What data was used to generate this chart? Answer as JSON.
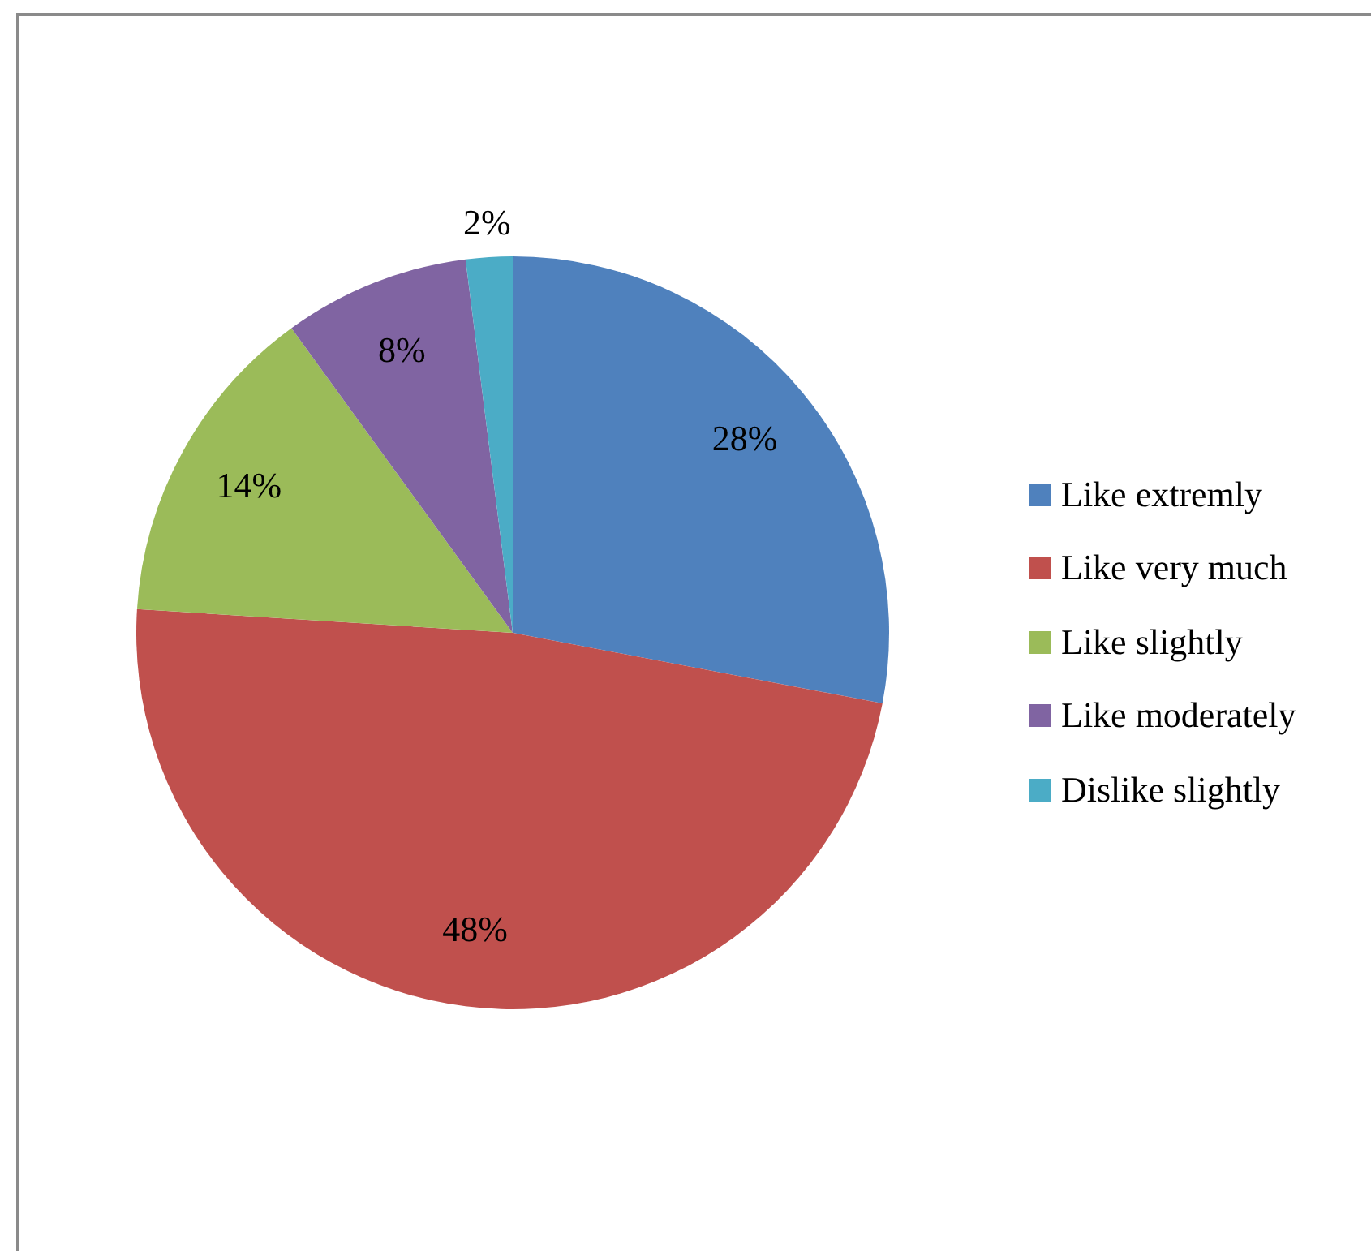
{
  "chart_data": {
    "type": "pie",
    "categories": [
      "Like extremly",
      "Like very much",
      "Like slightly",
      "Like moderately",
      "Dislike slightly"
    ],
    "values": [
      28,
      48,
      14,
      8,
      2
    ],
    "colors": [
      "#4f81bd",
      "#c0504d",
      "#9bbb59",
      "#8064a2",
      "#4bacc6"
    ],
    "value_labels": [
      "28%",
      "48%",
      "14%",
      "8%",
      "2%"
    ],
    "legend": "right"
  }
}
